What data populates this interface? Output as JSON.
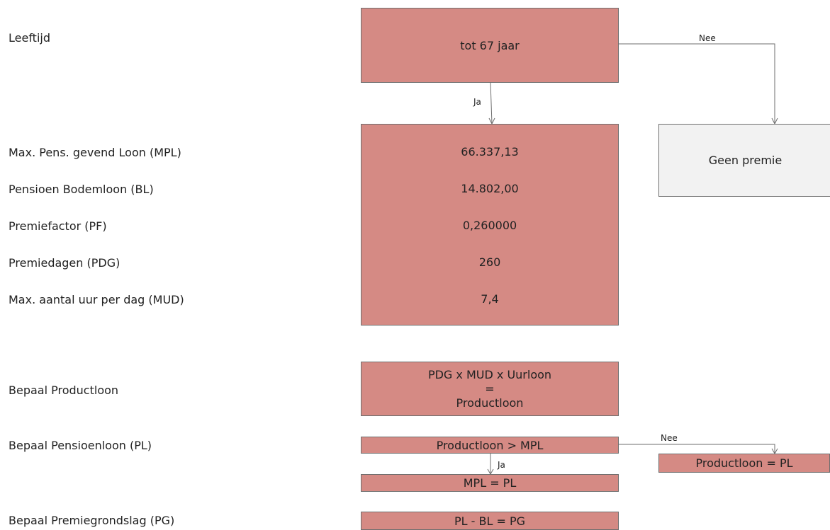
{
  "labels": {
    "leeftijd": "Leeftijd",
    "mpl": "Max. Pens. gevend Loon (MPL)",
    "bl": "Pensioen Bodemloon (BL)",
    "pf": "Premiefactor (PF)",
    "pdg": "Premiedagen (PDG)",
    "mud": "Max. aantal uur per dag (MUD)",
    "productloon": "Bepaal Productloon",
    "pensioenloon": "Bepaal Pensioenloon (PL)",
    "premiegrondslag": "Bepaal Premiegrondslag (PG)"
  },
  "boxes": {
    "age": "tot 67 jaar",
    "no_premium": "Geen premie",
    "values": {
      "mpl": "66.337,13",
      "bl": "14.802,00",
      "pf": "0,260000",
      "pdg": "260",
      "mud": "7,4"
    },
    "product_formula": {
      "line1": "PDG x MUD x Uurloon",
      "line2": "=",
      "line3": "Productloon"
    },
    "pl_check": "Productloon > MPL",
    "pl_yes": "MPL = PL",
    "pl_no": "Productloon = PL",
    "pg": "PL - BL = PG"
  },
  "edges": {
    "age_no": "Nee",
    "age_yes": "Ja",
    "pl_no": "Nee",
    "pl_yes": "Ja"
  },
  "colors": {
    "box_fill": "#d58a84",
    "neutral_fill": "#f2f2f2",
    "line": "#6e6e6e"
  }
}
